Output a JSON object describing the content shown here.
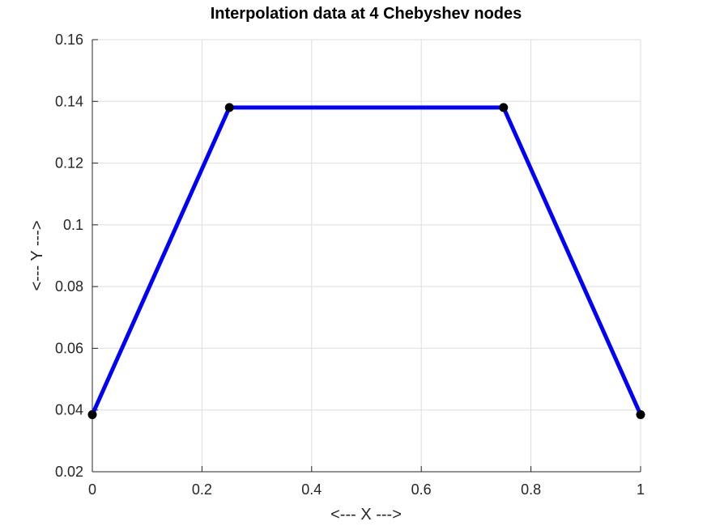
{
  "chart_data": {
    "type": "line",
    "title": "Interpolation data at 4 Chebyshev nodes",
    "xlabel": "<--- X --->",
    "ylabel": "<--- Y --->",
    "xlim": [
      0,
      1
    ],
    "ylim": [
      0.02,
      0.16
    ],
    "xticks": [
      0,
      0.2,
      0.4,
      0.6,
      0.8,
      1
    ],
    "xtick_labels": [
      "0",
      "0.2",
      "0.4",
      "0.6",
      "0.8",
      "1"
    ],
    "yticks": [
      0.02,
      0.04,
      0.06,
      0.08,
      0.1,
      0.12,
      0.14,
      0.16
    ],
    "ytick_labels": [
      "0.02",
      "0.04",
      "0.06",
      "0.08",
      "0.1",
      "0.12",
      "0.14",
      "0.16"
    ],
    "grid": true,
    "series": [
      {
        "x": [
          0,
          0.25,
          0.75,
          1
        ],
        "y": [
          0.0385,
          0.138,
          0.138,
          0.0385
        ],
        "line_color": "#0000ff",
        "marker_color": "#000000",
        "marker": "circle"
      }
    ]
  }
}
